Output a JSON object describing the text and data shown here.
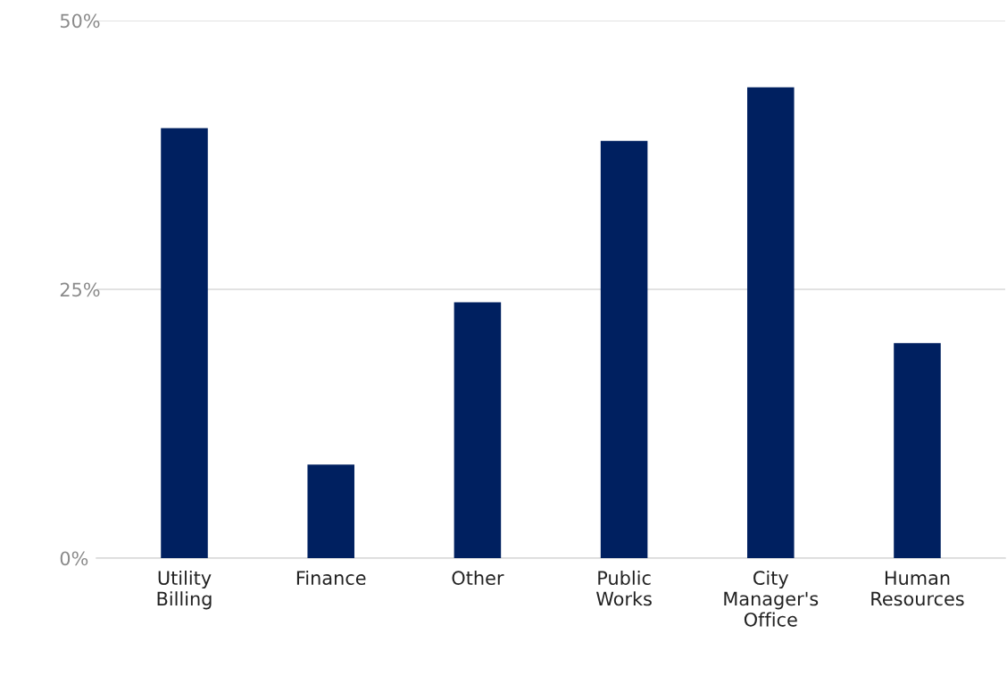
{
  "chart_data": {
    "type": "bar",
    "categories": [
      "Utility Billing",
      "Finance",
      "Other",
      "Public Works",
      "City Manager's Office",
      "Human Resources"
    ],
    "values": [
      40,
      8.7,
      23.8,
      38.8,
      43.8,
      20.0
    ],
    "color": "#002060",
    "ylim": [
      0,
      50
    ],
    "yticks": [
      {
        "value": 0,
        "label": "0%"
      },
      {
        "value": 25,
        "label": "25%"
      },
      {
        "value": 50,
        "label": "50%"
      }
    ],
    "grid": "y",
    "legend": false
  }
}
